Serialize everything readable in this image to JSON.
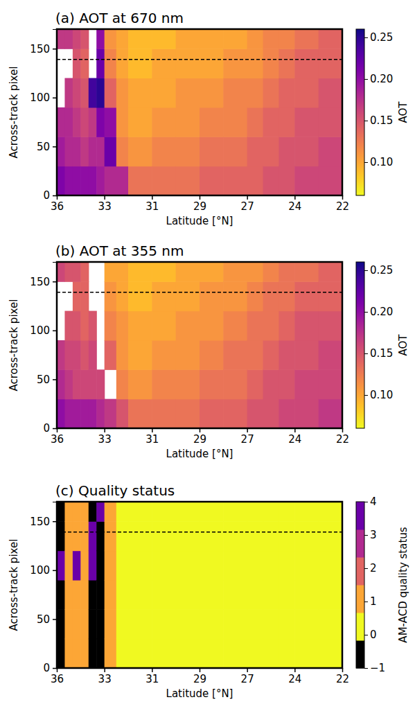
{
  "chart_data": [
    {
      "type": "heatmap",
      "title": "(a) AOT at 670 nm",
      "x_label": "Latitude [°N]",
      "y_label": "Across-track pixel",
      "x_edges": [
        36,
        35.5,
        35,
        34.5,
        34,
        33.5,
        33,
        32.5,
        32,
        31,
        30,
        29,
        28,
        27,
        26,
        25,
        24,
        23,
        22
      ],
      "y_edges": [
        0,
        30,
        60,
        90,
        120,
        150,
        170
      ],
      "values": [
        [
          0.21,
          0.19,
          0.18,
          null,
          null,
          0.17
        ],
        [
          0.2,
          0.18,
          0.18,
          0.17,
          null,
          0.17
        ],
        [
          0.2,
          0.18,
          0.17,
          0.16,
          0.15,
          0.16
        ],
        [
          0.2,
          0.17,
          0.16,
          0.15,
          0.14,
          0.15
        ],
        [
          0.2,
          0.18,
          0.17,
          0.24,
          null,
          null
        ],
        [
          0.19,
          0.18,
          0.21,
          0.25,
          0.22,
          0.2
        ],
        [
          0.18,
          0.22,
          0.2,
          0.14,
          0.12,
          0.11
        ],
        [
          0.18,
          0.12,
          0.11,
          0.11,
          0.1,
          0.1
        ],
        [
          0.13,
          0.11,
          0.1,
          0.1,
          0.09,
          0.09
        ],
        [
          0.13,
          0.12,
          0.11,
          0.1,
          0.1,
          0.09
        ],
        [
          0.13,
          0.12,
          0.11,
          0.11,
          0.1,
          0.1
        ],
        [
          0.14,
          0.13,
          0.12,
          0.11,
          0.1,
          0.1
        ],
        [
          0.14,
          0.13,
          0.12,
          0.12,
          0.11,
          0.1
        ],
        [
          0.14,
          0.14,
          0.13,
          0.12,
          0.11,
          0.11
        ],
        [
          0.15,
          0.14,
          0.14,
          0.13,
          0.12,
          0.12
        ],
        [
          0.15,
          0.15,
          0.14,
          0.14,
          0.13,
          0.12
        ],
        [
          0.16,
          0.15,
          0.15,
          0.14,
          0.14,
          0.13
        ],
        [
          0.16,
          0.16,
          0.15,
          0.15,
          0.14,
          0.14
        ]
      ],
      "xlim": [
        36,
        22
      ],
      "xticks": [
        36,
        33,
        31,
        29,
        27,
        24,
        22
      ],
      "ylim": [
        0,
        170
      ],
      "yticks": [
        0,
        50,
        100,
        150
      ],
      "color": "plasma_r",
      "colorbar": {
        "label": "AOT",
        "range": [
          0.06,
          0.26
        ],
        "ticks": [
          {
            "value": 0.1,
            "label": "0.10"
          },
          {
            "value": 0.15,
            "label": "0.15"
          },
          {
            "value": 0.2,
            "label": "0.20"
          },
          {
            "value": 0.25,
            "label": "0.25"
          }
        ]
      },
      "hline": 139
    },
    {
      "type": "heatmap",
      "title": "(b) AOT at 355 nm",
      "x_label": "Latitude [°N]",
      "y_label": "Across-track pixel",
      "x_edges": [
        36,
        35.5,
        35,
        34.5,
        34,
        33.5,
        33,
        32.5,
        32,
        31,
        30,
        29,
        28,
        27,
        26,
        25,
        24,
        23,
        22
      ],
      "y_edges": [
        0,
        30,
        60,
        90,
        120,
        150,
        170
      ],
      "values": [
        [
          0.2,
          0.18,
          0.17,
          null,
          null,
          0.16
        ],
        [
          0.19,
          0.17,
          0.16,
          0.15,
          null,
          0.15
        ],
        [
          0.19,
          0.16,
          0.16,
          0.15,
          0.14,
          0.15
        ],
        [
          0.19,
          0.16,
          0.15,
          0.14,
          0.14,
          0.14
        ],
        [
          0.19,
          0.16,
          0.16,
          0.15,
          null,
          null
        ],
        [
          0.18,
          0.16,
          null,
          null,
          null,
          null
        ],
        [
          0.17,
          null,
          0.14,
          0.12,
          0.11,
          0.1
        ],
        [
          0.15,
          0.12,
          0.11,
          0.11,
          0.1,
          0.1
        ],
        [
          0.13,
          0.11,
          0.1,
          0.1,
          0.09,
          0.09
        ],
        [
          0.13,
          0.12,
          0.11,
          0.1,
          0.1,
          0.09
        ],
        [
          0.13,
          0.12,
          0.11,
          0.11,
          0.1,
          0.1
        ],
        [
          0.14,
          0.13,
          0.12,
          0.11,
          0.11,
          0.1
        ],
        [
          0.14,
          0.13,
          0.13,
          0.12,
          0.11,
          0.11
        ],
        [
          0.15,
          0.14,
          0.13,
          0.13,
          0.12,
          0.11
        ],
        [
          0.15,
          0.15,
          0.14,
          0.13,
          0.13,
          0.12
        ],
        [
          0.16,
          0.15,
          0.15,
          0.14,
          0.13,
          0.13
        ],
        [
          0.16,
          0.16,
          0.15,
          0.15,
          0.14,
          0.13
        ],
        [
          0.17,
          0.16,
          0.16,
          0.15,
          0.14,
          0.14
        ]
      ],
      "xlim": [
        36,
        22
      ],
      "xticks": [
        36,
        33,
        31,
        29,
        27,
        24,
        22
      ],
      "ylim": [
        0,
        170
      ],
      "yticks": [
        0,
        50,
        100,
        150
      ],
      "color": "plasma_r",
      "colorbar": {
        "label": "AOT",
        "range": [
          0.06,
          0.26
        ],
        "ticks": [
          {
            "value": 0.1,
            "label": "0.10"
          },
          {
            "value": 0.15,
            "label": "0.15"
          },
          {
            "value": 0.2,
            "label": "0.20"
          },
          {
            "value": 0.25,
            "label": "0.25"
          }
        ]
      },
      "hline": 139
    },
    {
      "type": "heatmap",
      "title": "(c) Quality status",
      "x_label": "Latitude [°N]",
      "y_label": "Across-track pixel",
      "x_edges": [
        36,
        35.5,
        35,
        34.5,
        34,
        33.5,
        33,
        32.5,
        32,
        31,
        30,
        29,
        28,
        27,
        26,
        25,
        24,
        23,
        22
      ],
      "y_edges": [
        0,
        30,
        60,
        90,
        120,
        150,
        170
      ],
      "values": [
        [
          -1,
          -1,
          -1,
          4,
          -1,
          -1
        ],
        [
          1,
          1,
          1,
          1,
          1,
          1
        ],
        [
          1,
          1,
          1,
          4,
          1,
          1
        ],
        [
          1,
          1,
          1,
          1,
          1,
          1
        ],
        [
          -1,
          -1,
          -1,
          4,
          4,
          -1
        ],
        [
          -1,
          -1,
          -1,
          -1,
          -1,
          4
        ],
        [
          1,
          1,
          1,
          1,
          1,
          1
        ],
        [
          0,
          0,
          0,
          0,
          0,
          0
        ],
        [
          0,
          0,
          0,
          0,
          0,
          0
        ],
        [
          0,
          0,
          0,
          0,
          0,
          0
        ],
        [
          0,
          0,
          0,
          0,
          0,
          0
        ],
        [
          0,
          0,
          0,
          0,
          0,
          0
        ],
        [
          0,
          0,
          0,
          0,
          0,
          0
        ],
        [
          0,
          0,
          0,
          0,
          0,
          0
        ],
        [
          0,
          0,
          0,
          0,
          0,
          0
        ],
        [
          0,
          0,
          0,
          0,
          0,
          0
        ],
        [
          0,
          0,
          0,
          0,
          0,
          0
        ],
        [
          0,
          0,
          0,
          0,
          0,
          0
        ]
      ],
      "xlim": [
        36,
        22
      ],
      "xticks": [
        36,
        33,
        31,
        29,
        27,
        24,
        22
      ],
      "ylim": [
        0,
        170
      ],
      "yticks": [
        0,
        50,
        100,
        150
      ],
      "colors": [
        "#000000",
        "#f0f921",
        "#fca636",
        "#e16462",
        "#b12a90",
        "#6a00a8"
      ],
      "colorbar": {
        "label": "AM-ACD quality status",
        "range": [
          -1,
          4
        ],
        "ticks": [
          {
            "value": -1,
            "label": "−1"
          },
          0,
          1,
          2,
          3,
          4
        ]
      },
      "hline": 139
    }
  ]
}
